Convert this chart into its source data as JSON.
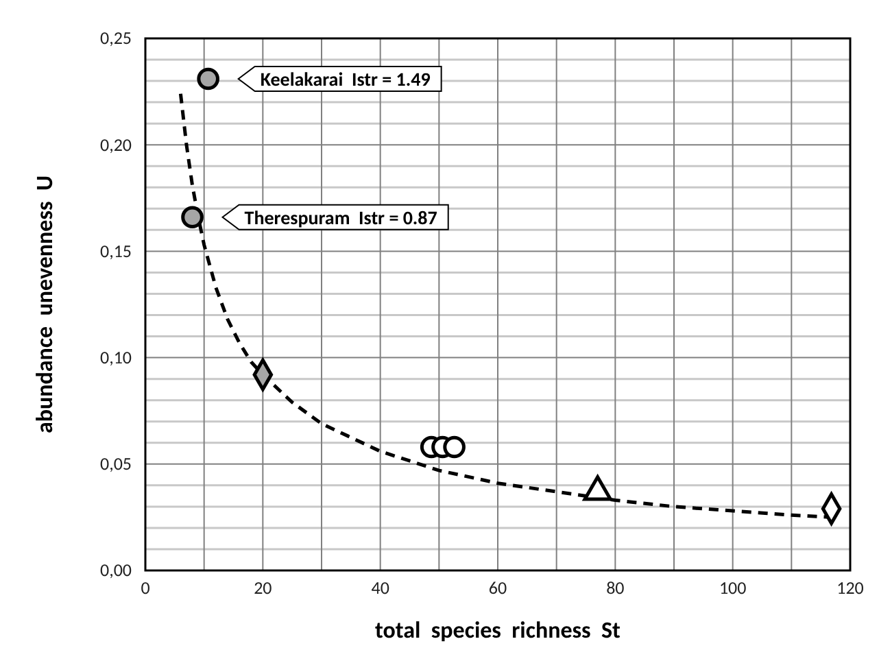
{
  "chart_data": {
    "type": "scatter",
    "xlabel": "total  species  richness  St",
    "ylabel": "abundance  unevenness  U",
    "xlim": [
      0,
      120
    ],
    "ylim": [
      0,
      0.25
    ],
    "xticks": [
      0,
      {
        "value": 10,
        "label": null
      },
      20,
      {
        "value": 30,
        "label": null
      },
      40,
      {
        "value": 50,
        "label": null
      },
      60,
      {
        "value": 70,
        "label": null
      },
      80,
      {
        "value": 90,
        "label": null
      },
      100,
      {
        "value": 110,
        "label": null
      },
      120
    ],
    "yticks": [
      {
        "value": 0,
        "label": "0,00"
      },
      {
        "value": 0.01,
        "label": null
      },
      {
        "value": 0.02,
        "label": null
      },
      {
        "value": 0.03,
        "label": null
      },
      {
        "value": 0.04,
        "label": null
      },
      {
        "value": 0.05,
        "label": "0,05"
      },
      {
        "value": 0.06,
        "label": null
      },
      {
        "value": 0.07,
        "label": null
      },
      {
        "value": 0.08,
        "label": null
      },
      {
        "value": 0.09,
        "label": null
      },
      {
        "value": 0.1,
        "label": "0,10"
      },
      {
        "value": 0.11,
        "label": null
      },
      {
        "value": 0.12,
        "label": null
      },
      {
        "value": 0.13,
        "label": null
      },
      {
        "value": 0.14,
        "label": null
      },
      {
        "value": 0.15,
        "label": "0,15"
      },
      {
        "value": 0.16,
        "label": null
      },
      {
        "value": 0.17,
        "label": null
      },
      {
        "value": 0.18,
        "label": null
      },
      {
        "value": 0.19,
        "label": null
      },
      {
        "value": 0.2,
        "label": "0,20"
      },
      {
        "value": 0.21,
        "label": null
      },
      {
        "value": 0.22,
        "label": null
      },
      {
        "value": 0.23,
        "label": null
      },
      {
        "value": 0.24,
        "label": null
      },
      {
        "value": 0.25,
        "label": "0,25"
      }
    ],
    "grid": true,
    "series": [
      {
        "type": "line",
        "color": "#000000",
        "marker": "none",
        "line_style": "dashed",
        "x": [
          6,
          7,
          8,
          9,
          10,
          12,
          14,
          16,
          18,
          20,
          25,
          30,
          40,
          50,
          60,
          70,
          80,
          90,
          100,
          110,
          117
        ],
        "values": [
          0.224,
          0.2,
          0.181,
          0.166,
          0.153,
          0.133,
          0.118,
          0.107,
          0.098,
          0.092,
          0.079,
          0.069,
          0.056,
          0.047,
          0.041,
          0.037,
          0.033,
          0.03,
          0.028,
          0.026,
          0.025
        ]
      },
      {
        "color": "#a6a6a6",
        "marker": "circle",
        "x": [
          10.7,
          8.0
        ],
        "values": [
          0.231,
          0.166
        ]
      },
      {
        "color": "#a6a6a6",
        "marker": "diamond",
        "x": [
          20
        ],
        "values": [
          0.092
        ]
      },
      {
        "color": "#ffffff",
        "marker": "circle",
        "x": [
          48.7,
          50.6,
          52.6
        ],
        "values": [
          0.058,
          0.058,
          0.058
        ]
      },
      {
        "color": "#ffffff",
        "marker": "triangle",
        "x": [
          77
        ],
        "values": [
          0.037
        ]
      },
      {
        "color": "#ffffff",
        "marker": "diamond",
        "x": [
          116.8
        ],
        "values": [
          0.029
        ]
      }
    ],
    "annotations": [
      {
        "text": "Keelakarai  Istr = 1.49",
        "x": 10.7,
        "y": 0.231
      },
      {
        "text": "Therespuram  Istr = 0.87",
        "x": 8.0,
        "y": 0.166
      }
    ]
  }
}
